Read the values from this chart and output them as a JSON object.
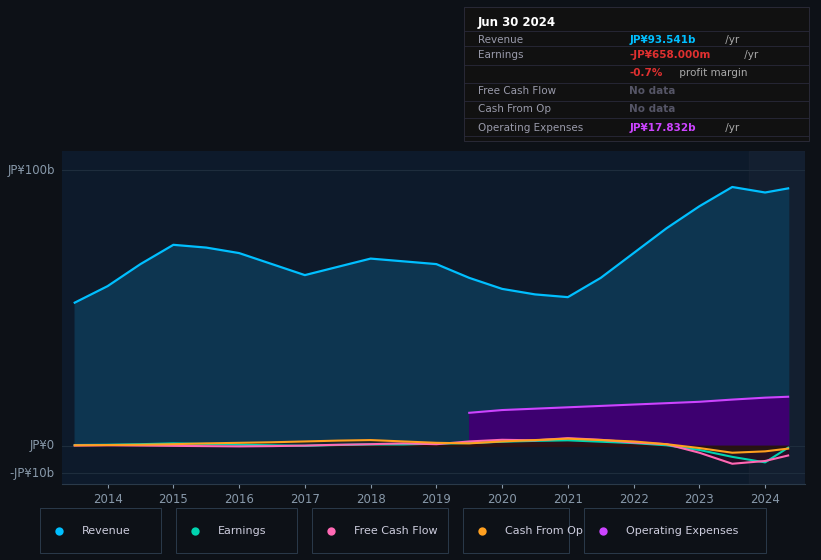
{
  "background_color": "#0d1117",
  "plot_bg_color": "#0d1a2b",
  "years": [
    2013.5,
    2014.0,
    2014.5,
    2015.0,
    2015.5,
    2016.0,
    2016.5,
    2017.0,
    2017.5,
    2018.0,
    2018.5,
    2019.0,
    2019.5,
    2020.0,
    2020.5,
    2021.0,
    2021.5,
    2022.0,
    2022.5,
    2023.0,
    2023.5,
    2024.0,
    2024.35
  ],
  "revenue": [
    52,
    58,
    66,
    73,
    72,
    70,
    66,
    62,
    65,
    68,
    67,
    66,
    61,
    57,
    55,
    54,
    61,
    70,
    79,
    87,
    94,
    92,
    93.5
  ],
  "earnings": [
    0.3,
    0.4,
    0.6,
    0.9,
    0.7,
    0.4,
    0.2,
    0.0,
    0.3,
    0.5,
    0.5,
    0.8,
    1.0,
    1.5,
    1.8,
    2.0,
    1.5,
    1.0,
    0.2,
    -1.5,
    -4.0,
    -6.0,
    -0.658
  ],
  "free_cash_flow": [
    0.1,
    0.2,
    0.1,
    0.0,
    -0.1,
    -0.2,
    -0.1,
    0.1,
    0.4,
    0.6,
    0.9,
    0.6,
    1.6,
    2.2,
    2.0,
    2.8,
    2.2,
    1.2,
    0.6,
    -2.5,
    -6.5,
    -5.5,
    -3.5
  ],
  "cash_from_op": [
    0.2,
    0.3,
    0.4,
    0.6,
    0.9,
    1.1,
    1.3,
    1.6,
    1.9,
    2.1,
    1.6,
    1.1,
    0.9,
    1.6,
    2.1,
    2.6,
    2.1,
    1.6,
    0.6,
    -0.8,
    -2.5,
    -2.0,
    -1.0
  ],
  "op_expenses_x": [
    2019.5,
    2020.0,
    2020.5,
    2021.0,
    2021.5,
    2022.0,
    2022.5,
    2023.0,
    2023.5,
    2024.0,
    2024.35
  ],
  "op_expenses_y": [
    12.0,
    13.0,
    13.5,
    14.0,
    14.5,
    15.0,
    15.5,
    16.0,
    16.8,
    17.5,
    17.832
  ],
  "revenue_color": "#00bfff",
  "revenue_fill": "#0d3550",
  "earnings_color": "#00d4b0",
  "free_cash_flow_color": "#ff69b4",
  "cash_from_op_color": "#ffa020",
  "op_expenses_color": "#cc44ff",
  "op_expenses_fill": "#3d0070",
  "legend_entries": [
    "Revenue",
    "Earnings",
    "Free Cash Flow",
    "Cash From Op",
    "Operating Expenses"
  ],
  "legend_colors": [
    "#00bfff",
    "#00d4b0",
    "#ff69b4",
    "#ffa020",
    "#cc44ff"
  ],
  "xticks": [
    2014,
    2015,
    2016,
    2017,
    2018,
    2019,
    2020,
    2021,
    2022,
    2023,
    2024
  ],
  "xlim": [
    2013.3,
    2024.6
  ],
  "ylim": [
    -14,
    107
  ],
  "ytick_vals": [
    100,
    0,
    -10
  ],
  "ytick_labels": [
    "JP¥100b",
    "JP¥0",
    "-JP¥10b"
  ],
  "grid_color": "#1e2d3d",
  "axis_color": "#2a3a4a",
  "tick_color": "#8899aa",
  "info_title": "Jun 30 2024",
  "info_rows": [
    {
      "label": "Revenue",
      "val1": "JP¥93.541b",
      "val1_color": "#00bfff",
      "val2": " /yr",
      "val2_color": "#aaaaaa",
      "val3": "",
      "val3_color": ""
    },
    {
      "label": "Earnings",
      "val1": "-JP¥658.000m",
      "val1_color": "#e03030",
      "val2": " /yr",
      "val2_color": "#aaaaaa",
      "val3": "",
      "val3_color": ""
    },
    {
      "label": "",
      "val1": "-0.7%",
      "val1_color": "#e03030",
      "val2": " profit margin",
      "val2_color": "#aaaaaa",
      "val3": "",
      "val3_color": ""
    },
    {
      "label": "Free Cash Flow",
      "val1": "No data",
      "val1_color": "#555566",
      "val2": "",
      "val2_color": "",
      "val3": "",
      "val3_color": ""
    },
    {
      "label": "Cash From Op",
      "val1": "No data",
      "val1_color": "#555566",
      "val2": "",
      "val2_color": "",
      "val3": "",
      "val3_color": ""
    },
    {
      "label": "Operating Expenses",
      "val1": "JP¥17.832b",
      "val1_color": "#cc44ff",
      "val2": " /yr",
      "val2_color": "#aaaaaa",
      "val3": "",
      "val3_color": ""
    }
  ]
}
